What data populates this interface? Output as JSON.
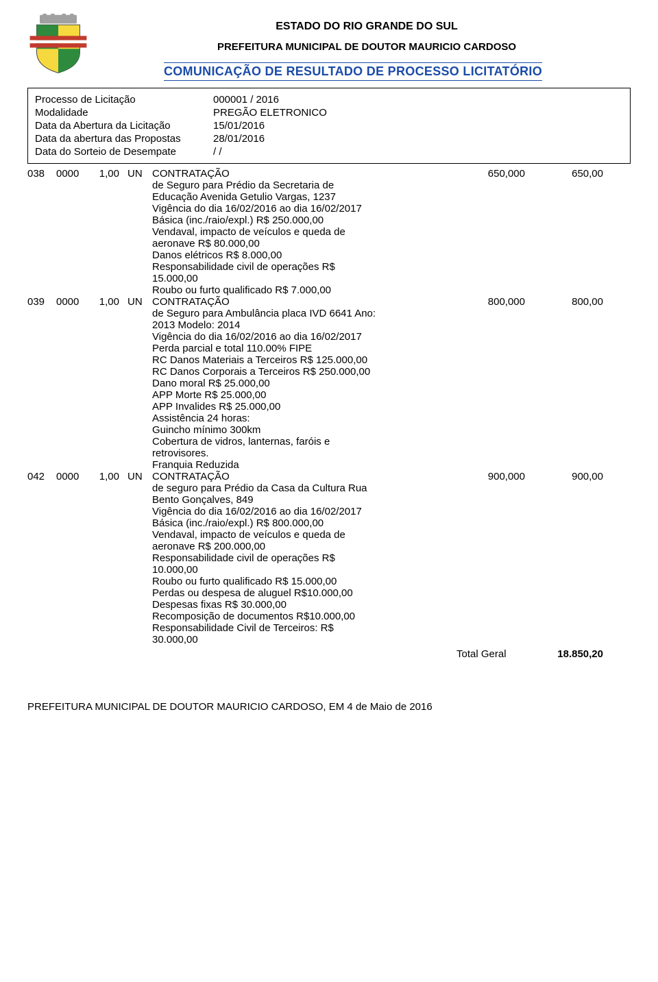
{
  "header": {
    "estado": "ESTADO DO RIO GRANDE DO SUL",
    "prefeitura": "PREFEITURA MUNICIPAL  DE DOUTOR MAURICIO CARDOSO",
    "titulo": "COMUNICAÇÃO DE RESULTADO DE PROCESSO LICITATÓRIO",
    "titulo_color": "#1a4ba8"
  },
  "info": {
    "rows": [
      {
        "label": "Processo de Licitação",
        "value": "000001 / 2016"
      },
      {
        "label": "Modalidade",
        "value": "PREGÃO ELETRONICO"
      },
      {
        "label": "Data da Abertura da Licitação",
        "value": "15/01/2016"
      },
      {
        "label": "Data da abertura das Propostas",
        "value": "28/01/2016"
      },
      {
        "label": "Data do Sorteio de Desempate",
        "value": "   /   /"
      }
    ]
  },
  "logo": {
    "top_fill": "#a0a0a0",
    "flag_green": "#2e8b3e",
    "flag_yellow": "#f5d93f",
    "band_red": "#c23b2e",
    "band_white": "#ffffff"
  },
  "items": [
    {
      "item": "038",
      "codigo": "0000",
      "qty": "1,00",
      "un": "UN",
      "vlr_unit": "650,000",
      "vlr_total": "650,00",
      "titulo": "CONTRATAÇÃO",
      "linhas": [
        "de Seguro para Prédio da Secretaria de",
        "Educação Avenida Getulio Vargas, 1237",
        "Vigência do dia 16/02/2016 ao dia 16/02/2017",
        "Básica (inc./raio/expl.) R$ 250.000,00",
        "Vendaval, impacto de veículos e queda de",
        "aeronave R$ 80.000,00",
        "Danos elétricos R$ 8.000,00",
        "Responsabilidade civil de operações R$",
        "15.000,00",
        "Roubo ou furto qualificado R$ 7.000,00"
      ]
    },
    {
      "item": "039",
      "codigo": "0000",
      "qty": "1,00",
      "un": "UN",
      "vlr_unit": "800,000",
      "vlr_total": "800,00",
      "titulo": "CONTRATAÇÃO",
      "linhas": [
        "de Seguro para Ambulância placa IVD 6641 Ano:",
        "2013 Modelo: 2014",
        "Vigência do dia 16/02/2016 ao dia 16/02/2017",
        "Perda parcial e total 110.00% FIPE",
        "RC Danos Materiais a Terceiros R$ 125.000,00",
        "RC Danos Corporais a Terceiros R$ 250.000,00",
        "Dano moral R$ 25.000,00",
        "APP Morte R$ 25.000,00",
        "APP Invalides R$ 25.000,00",
        "Assistência 24 horas:",
        "Guincho mínimo 300km",
        "Cobertura de vidros, lanternas, faróis e",
        "retrovisores.",
        "Franquia Reduzida"
      ]
    },
    {
      "item": "042",
      "codigo": "0000",
      "qty": "1,00",
      "un": "UN",
      "vlr_unit": "900,000",
      "vlr_total": "900,00",
      "titulo": "CONTRATAÇÃO",
      "linhas": [
        "de seguro para Prédio da Casa da Cultura Rua",
        "Bento Gonçalves, 849",
        "Vigência do dia 16/02/2016 ao dia 16/02/2017",
        "Básica (inc./raio/expl.) R$ 800.000,00",
        "Vendaval, impacto de veículos e queda de",
        "aeronave R$ 200.000,00",
        "Responsabilidade civil de operações R$",
        "10.000,00",
        "Roubo ou furto qualificado R$ 15.000,00",
        "Perdas ou despesa de aluguel R$10.000,00",
        "Despesas fixas R$ 30.000,00",
        "Recomposição de documentos R$10.000,00",
        "Responsabilidade Civil de Terceiros: R$",
        "30.000,00"
      ]
    }
  ],
  "total": {
    "label": "Total Geral",
    "value": "18.850,20"
  },
  "footer": "PREFEITURA MUNICIPAL  DE DOUTOR MAURICIO CARDOSO, EM 4 de Maio de 2016"
}
